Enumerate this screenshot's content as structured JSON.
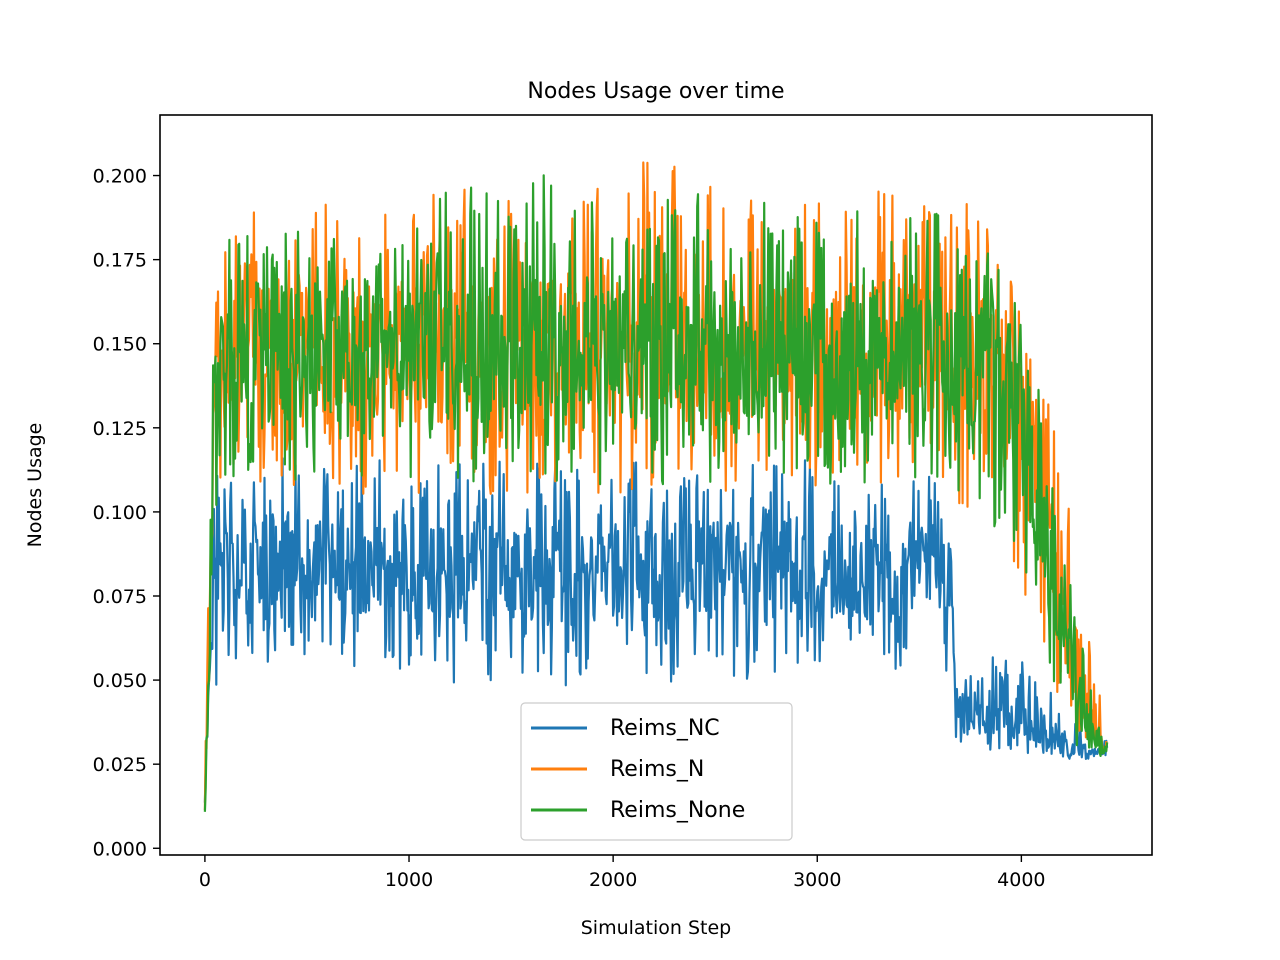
{
  "chart_data": {
    "type": "line",
    "title": "Nodes Usage over time",
    "xlabel": "Simulation Step",
    "ylabel": "Nodes Usage",
    "xlim": [
      -220,
      4640
    ],
    "ylim": [
      -0.002,
      0.218
    ],
    "xticks": [
      0,
      1000,
      2000,
      3000,
      4000
    ],
    "xtick_labels": [
      "0",
      "1000",
      "2000",
      "3000",
      "4000"
    ],
    "yticks": [
      0.0,
      0.025,
      0.05,
      0.075,
      0.1,
      0.125,
      0.15,
      0.175,
      0.2
    ],
    "ytick_labels": [
      "0.000",
      "0.025",
      "0.050",
      "0.075",
      "0.100",
      "0.125",
      "0.150",
      "0.175",
      "0.200"
    ],
    "grid": false,
    "legend": {
      "position": "lower center"
    },
    "series": [
      {
        "name": "Reims_NC",
        "color": "#1f77b4",
        "x": [
          0,
          20,
          40,
          60,
          100,
          200,
          500,
          1000,
          1500,
          2000,
          2500,
          3000,
          3500,
          3650,
          3680,
          3700,
          3900,
          4000,
          4100,
          4200,
          4300,
          4420
        ],
        "values": [
          0.012,
          0.05,
          0.075,
          0.082,
          0.085,
          0.086,
          0.085,
          0.083,
          0.082,
          0.082,
          0.083,
          0.083,
          0.082,
          0.08,
          0.045,
          0.042,
          0.04,
          0.038,
          0.034,
          0.031,
          0.029,
          0.028
        ],
        "band_low": [
          0.009,
          0.035,
          0.045,
          0.048,
          0.052,
          0.055,
          0.055,
          0.05,
          0.048,
          0.048,
          0.048,
          0.052,
          0.052,
          0.05,
          0.03,
          0.03,
          0.029,
          0.028,
          0.027,
          0.027,
          0.027,
          0.027
        ],
        "band_high": [
          0.018,
          0.06,
          0.11,
          0.112,
          0.115,
          0.116,
          0.118,
          0.115,
          0.115,
          0.115,
          0.115,
          0.118,
          0.115,
          0.105,
          0.06,
          0.058,
          0.058,
          0.056,
          0.05,
          0.045,
          0.04,
          0.033
        ]
      },
      {
        "name": "Reims_N",
        "color": "#ff7f0e",
        "x": [
          0,
          20,
          40,
          60,
          100,
          200,
          500,
          1000,
          1500,
          2000,
          2500,
          3000,
          3500,
          3800,
          3950,
          4050,
          4150,
          4250,
          4350,
          4420
        ],
        "values": [
          0.012,
          0.06,
          0.12,
          0.14,
          0.148,
          0.148,
          0.148,
          0.147,
          0.147,
          0.148,
          0.147,
          0.147,
          0.146,
          0.145,
          0.14,
          0.12,
          0.095,
          0.06,
          0.035,
          0.03
        ],
        "band_low": [
          0.009,
          0.04,
          0.09,
          0.1,
          0.11,
          0.108,
          0.105,
          0.105,
          0.105,
          0.105,
          0.105,
          0.105,
          0.105,
          0.1,
          0.085,
          0.07,
          0.05,
          0.035,
          0.028,
          0.027
        ],
        "band_high": [
          0.02,
          0.09,
          0.15,
          0.17,
          0.185,
          0.19,
          0.195,
          0.195,
          0.2,
          0.207,
          0.2,
          0.198,
          0.197,
          0.19,
          0.17,
          0.16,
          0.13,
          0.1,
          0.06,
          0.033
        ]
      },
      {
        "name": "Reims_None",
        "color": "#2ca02c",
        "x": [
          0,
          20,
          40,
          60,
          100,
          200,
          500,
          1000,
          1500,
          2000,
          2500,
          3000,
          3500,
          3800,
          3950,
          4050,
          4150,
          4250,
          4350,
          4420
        ],
        "values": [
          0.012,
          0.06,
          0.12,
          0.14,
          0.148,
          0.148,
          0.148,
          0.147,
          0.148,
          0.147,
          0.147,
          0.146,
          0.146,
          0.144,
          0.14,
          0.11,
          0.08,
          0.05,
          0.033,
          0.029
        ],
        "band_low": [
          0.009,
          0.04,
          0.09,
          0.1,
          0.11,
          0.11,
          0.108,
          0.108,
          0.108,
          0.108,
          0.108,
          0.108,
          0.108,
          0.1,
          0.09,
          0.07,
          0.04,
          0.03,
          0.028,
          0.027
        ],
        "band_high": [
          0.02,
          0.09,
          0.15,
          0.17,
          0.18,
          0.185,
          0.19,
          0.19,
          0.205,
          0.195,
          0.195,
          0.19,
          0.19,
          0.185,
          0.17,
          0.15,
          0.11,
          0.075,
          0.05,
          0.034
        ]
      }
    ]
  }
}
